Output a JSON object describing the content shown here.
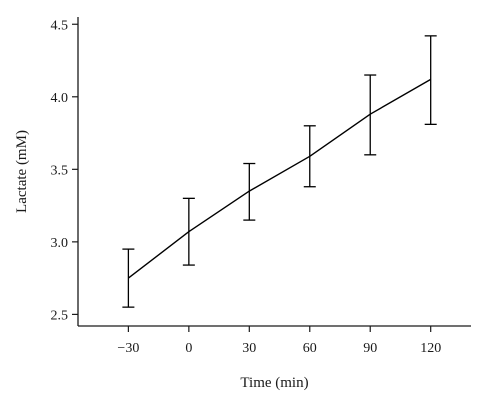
{
  "chart_data": {
    "type": "line",
    "title": "",
    "xlabel": "Time (min)",
    "ylabel": "Lactate (mM)",
    "x": [
      -30,
      0,
      30,
      60,
      90,
      120
    ],
    "x_tick_labels": [
      "−30",
      "0",
      "30",
      "60",
      "90",
      "120"
    ],
    "y_ticks": [
      2.5,
      3.0,
      3.5,
      4.0,
      4.5
    ],
    "y_tick_labels": [
      "2.5",
      "3.0",
      "3.5",
      "4.0",
      "4.5"
    ],
    "xlim": [
      -55,
      140
    ],
    "ylim": [
      2.42,
      4.55
    ],
    "grid": false,
    "series": [
      {
        "values": [
          2.75,
          3.07,
          3.35,
          3.59,
          3.88,
          4.12
        ],
        "error_low": [
          2.55,
          2.84,
          3.15,
          3.38,
          3.6,
          3.81
        ],
        "error_high": [
          2.95,
          3.3,
          3.54,
          3.8,
          4.15,
          4.42
        ],
        "color": "#000000"
      }
    ]
  }
}
